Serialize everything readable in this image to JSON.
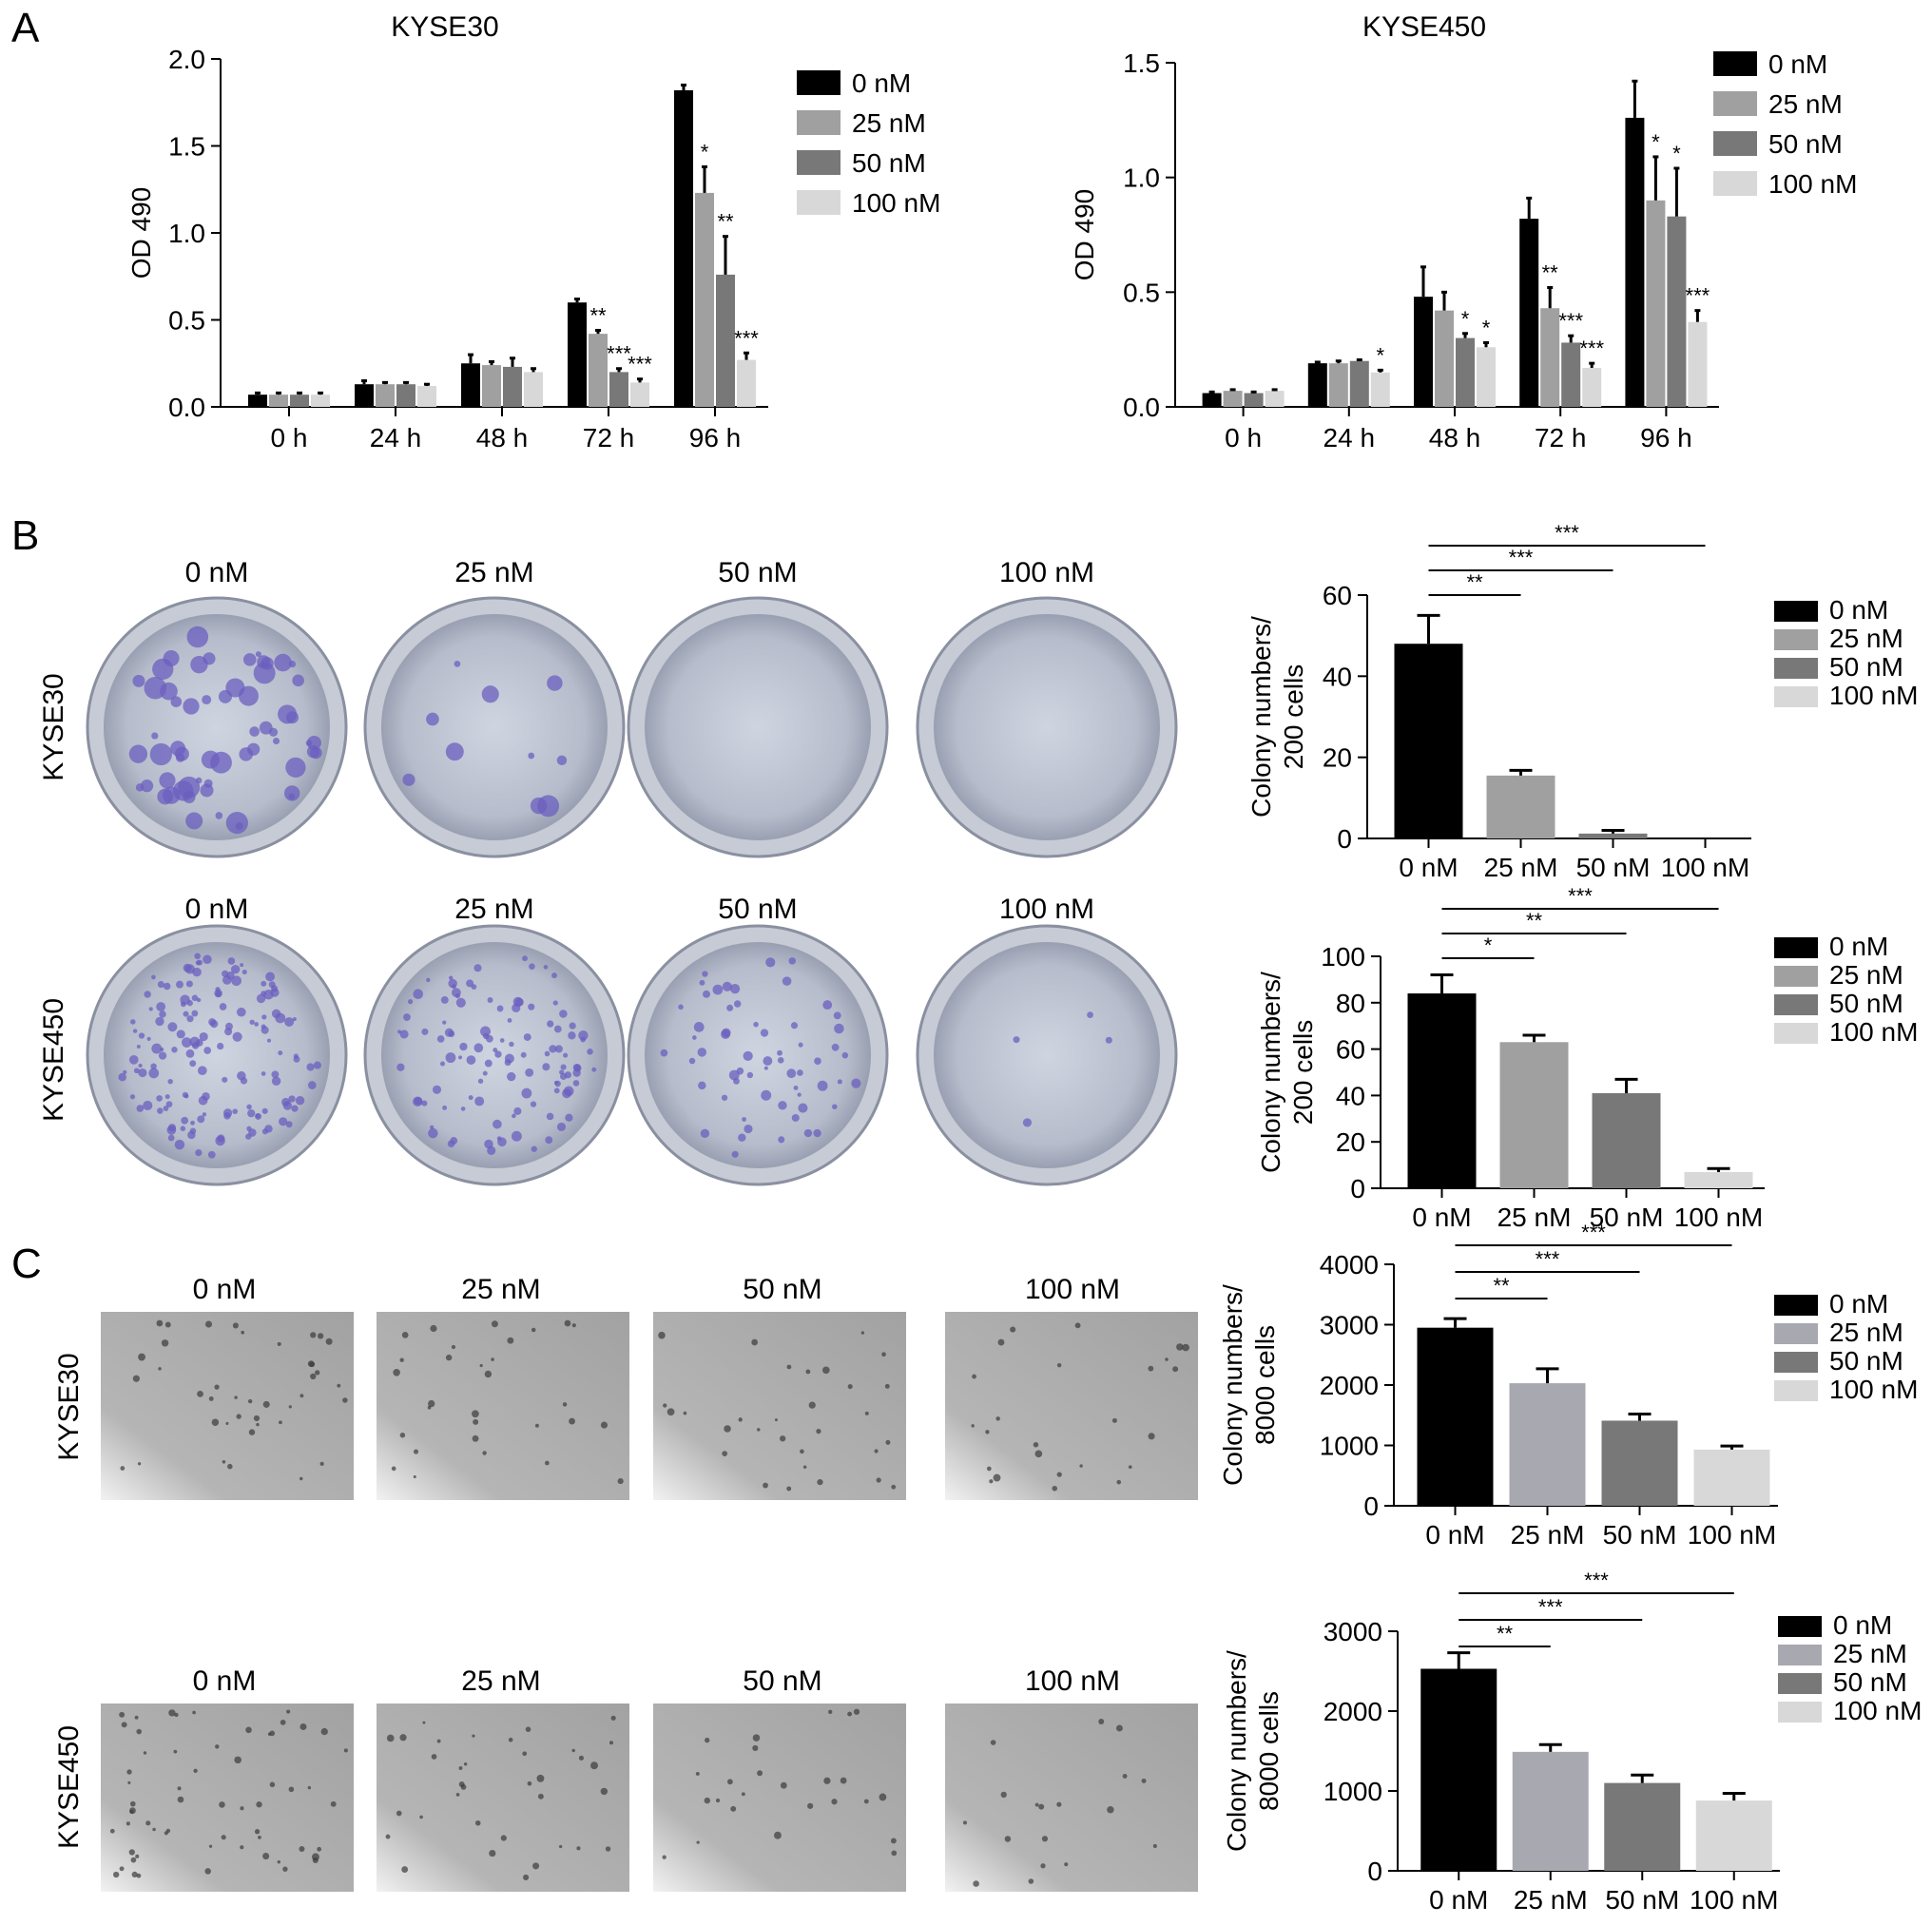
{
  "figure": {
    "panel_labels": [
      "A",
      "B",
      "C"
    ],
    "colors": {
      "0 nM": "#000000",
      "25 nM": "#a0a0a0",
      "50 nM": "#787878",
      "100 nM": "#d8d8d8",
      "25 nM (panel C)": "#a8a8b0",
      "crystal_violet": "#6b5fbf",
      "soft_agar_bg": "#a9a9a9"
    },
    "legend": [
      "0 nM",
      "25 nM",
      "50 nM",
      "100 nM"
    ],
    "panel_b": {
      "rows": [
        "KYSE30",
        "KYSE450"
      ],
      "columns": [
        "0 nM",
        "25 nM",
        "50 nM",
        "100 nM"
      ],
      "image_kind": "colony formation plates (crystal violet)"
    },
    "panel_c": {
      "rows": [
        "KYSE30",
        "KYSE450"
      ],
      "columns": [
        "0 nM",
        "25 nM",
        "50 nM",
        "100 nM"
      ],
      "image_kind": "soft agar colony micrographs"
    }
  },
  "chart_data": [
    {
      "id": "A1",
      "type": "bar",
      "title": "KYSE30",
      "xlabel": "",
      "ylabel": "OD 490",
      "categories": [
        "0 h",
        "24 h",
        "48 h",
        "72 h",
        "96 h"
      ],
      "ylim": [
        0,
        2.0
      ],
      "yticks": [
        "0.0",
        "0.5",
        "1.0",
        "1.5",
        "2.0"
      ],
      "legend_position": "top-right",
      "grid": false,
      "series": [
        {
          "name": "0 nM",
          "values": [
            0.07,
            0.13,
            0.25,
            0.6,
            1.82
          ],
          "errors": [
            0.01,
            0.02,
            0.05,
            0.02,
            0.03
          ]
        },
        {
          "name": "25 nM",
          "values": [
            0.07,
            0.13,
            0.24,
            0.42,
            1.23
          ],
          "errors": [
            0.01,
            0.01,
            0.02,
            0.02,
            0.15
          ]
        },
        {
          "name": "50 nM",
          "values": [
            0.07,
            0.13,
            0.23,
            0.2,
            0.76
          ],
          "errors": [
            0.01,
            0.01,
            0.05,
            0.02,
            0.22
          ]
        },
        {
          "name": "100 nM",
          "values": [
            0.07,
            0.12,
            0.2,
            0.14,
            0.27
          ],
          "errors": [
            0.01,
            0.01,
            0.02,
            0.02,
            0.04
          ]
        }
      ],
      "significance": [
        {
          "category": "72 h",
          "series": "25 nM",
          "label": "**"
        },
        {
          "category": "72 h",
          "series": "50 nM",
          "label": "***"
        },
        {
          "category": "72 h",
          "series": "100 nM",
          "label": "***"
        },
        {
          "category": "96 h",
          "series": "25 nM",
          "label": "*"
        },
        {
          "category": "96 h",
          "series": "50 nM",
          "label": "**"
        },
        {
          "category": "96 h",
          "series": "100 nM",
          "label": "***"
        }
      ]
    },
    {
      "id": "A2",
      "type": "bar",
      "title": "KYSE450",
      "xlabel": "",
      "ylabel": "OD 490",
      "categories": [
        "0 h",
        "24 h",
        "48 h",
        "72 h",
        "96 h"
      ],
      "ylim": [
        0,
        1.5
      ],
      "yticks": [
        "0.0",
        "0.5",
        "1.0",
        "1.5"
      ],
      "legend_position": "top-right",
      "grid": false,
      "series": [
        {
          "name": "0 nM",
          "values": [
            0.06,
            0.19,
            0.48,
            0.82,
            1.26
          ],
          "errors": [
            0.005,
            0.005,
            0.13,
            0.09,
            0.16
          ]
        },
        {
          "name": "25 nM",
          "values": [
            0.07,
            0.19,
            0.42,
            0.43,
            0.9
          ],
          "errors": [
            0.005,
            0.01,
            0.08,
            0.09,
            0.19
          ]
        },
        {
          "name": "50 nM",
          "values": [
            0.06,
            0.2,
            0.3,
            0.28,
            0.83
          ],
          "errors": [
            0.005,
            0.005,
            0.02,
            0.03,
            0.21
          ]
        },
        {
          "name": "100 nM",
          "values": [
            0.07,
            0.15,
            0.26,
            0.17,
            0.37
          ],
          "errors": [
            0.005,
            0.01,
            0.02,
            0.02,
            0.05
          ]
        }
      ],
      "significance": [
        {
          "category": "24 h",
          "series": "100 nM",
          "label": "*"
        },
        {
          "category": "48 h",
          "series": "50 nM",
          "label": "*"
        },
        {
          "category": "48 h",
          "series": "100 nM",
          "label": "*"
        },
        {
          "category": "72 h",
          "series": "25 nM",
          "label": "**"
        },
        {
          "category": "72 h",
          "series": "50 nM",
          "label": "***"
        },
        {
          "category": "72 h",
          "series": "100 nM",
          "label": "***"
        },
        {
          "category": "96 h",
          "series": "25 nM",
          "label": "*"
        },
        {
          "category": "96 h",
          "series": "50 nM",
          "label": "*"
        },
        {
          "category": "96 h",
          "series": "100 nM",
          "label": "***"
        }
      ]
    },
    {
      "id": "B1",
      "type": "bar",
      "title": "",
      "ylabel": [
        "Colony numbers/",
        "200 cells"
      ],
      "categories": [
        "0 nM",
        "25 nM",
        "50 nM",
        "100 nM"
      ],
      "values": [
        48,
        15.5,
        1.2,
        0
      ],
      "errors": [
        7,
        1.3,
        0.8,
        0
      ],
      "ylim": [
        0,
        60
      ],
      "yticks": [
        "0",
        "20",
        "40",
        "60"
      ],
      "legend_position": "right",
      "grid": false,
      "brackets": [
        {
          "from": "0 nM",
          "to": "25 nM",
          "label": "**"
        },
        {
          "from": "0 nM",
          "to": "50 nM",
          "label": "***"
        },
        {
          "from": "0 nM",
          "to": "100 nM",
          "label": "***"
        }
      ]
    },
    {
      "id": "B2",
      "type": "bar",
      "title": "",
      "ylabel": [
        "Colony numbers/",
        "200 cells"
      ],
      "categories": [
        "0 nM",
        "25 nM",
        "50 nM",
        "100 nM"
      ],
      "values": [
        84,
        63,
        41,
        7
      ],
      "errors": [
        8,
        3,
        6,
        1.5
      ],
      "ylim": [
        0,
        100
      ],
      "yticks": [
        "0",
        "20",
        "40",
        "60",
        "80",
        "100"
      ],
      "legend_position": "right",
      "grid": false,
      "brackets": [
        {
          "from": "0 nM",
          "to": "25 nM",
          "label": "*"
        },
        {
          "from": "0 nM",
          "to": "50 nM",
          "label": "**"
        },
        {
          "from": "0 nM",
          "to": "100 nM",
          "label": "***"
        }
      ]
    },
    {
      "id": "C1",
      "type": "bar",
      "title": "",
      "ylabel": [
        "Colony numbers/",
        "8000 cells"
      ],
      "categories": [
        "0 nM",
        "25 nM",
        "50 nM",
        "100 nM"
      ],
      "values": [
        2950,
        2030,
        1410,
        930
      ],
      "errors": [
        150,
        240,
        110,
        60
      ],
      "ylim": [
        0,
        4000
      ],
      "yticks": [
        "0",
        "1000",
        "2000",
        "3000",
        "4000"
      ],
      "legend_position": "right",
      "grid": false,
      "brackets": [
        {
          "from": "0 nM",
          "to": "25 nM",
          "label": "**"
        },
        {
          "from": "0 nM",
          "to": "50 nM",
          "label": "***"
        },
        {
          "from": "0 nM",
          "to": "100 nM",
          "label": "***"
        }
      ]
    },
    {
      "id": "C2",
      "type": "bar",
      "title": "",
      "ylabel": [
        "Colony numbers/",
        "8000 cells"
      ],
      "categories": [
        "0 nM",
        "25 nM",
        "50 nM",
        "100 nM"
      ],
      "values": [
        2530,
        1490,
        1100,
        880
      ],
      "errors": [
        200,
        90,
        100,
        90
      ],
      "ylim": [
        0,
        3000
      ],
      "yticks": [
        "0",
        "1000",
        "2000",
        "3000"
      ],
      "legend_position": "right",
      "grid": false,
      "brackets": [
        {
          "from": "0 nM",
          "to": "25 nM",
          "label": "**"
        },
        {
          "from": "0 nM",
          "to": "50 nM",
          "label": "***"
        },
        {
          "from": "0 nM",
          "to": "100 nM",
          "label": "***"
        }
      ]
    }
  ]
}
